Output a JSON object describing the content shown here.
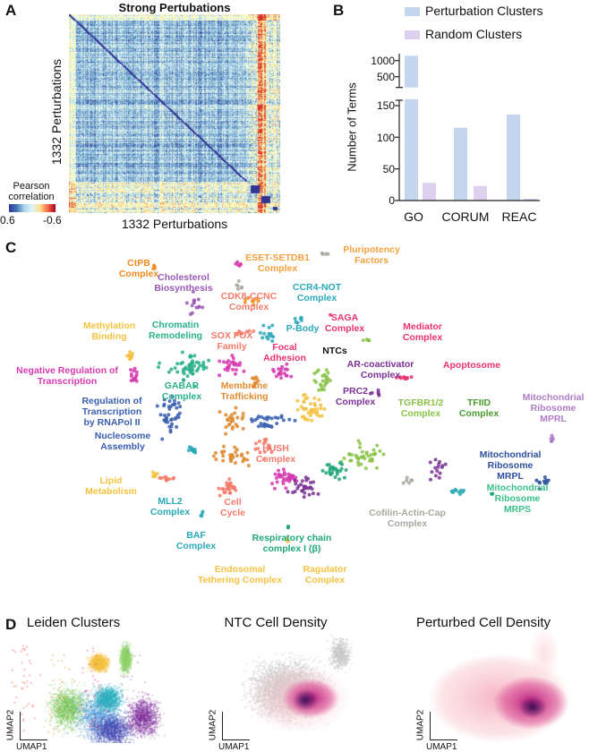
{
  "panel_labels": [
    "A",
    "B",
    "C",
    "D"
  ],
  "panel_a": {
    "title": "Strong Pertubations",
    "ylabel": "1332 Perturbations",
    "xlabel": "1332 Perturbations",
    "colorbar_title": "Pearson\ncorrelation",
    "colorbar_min_label": "0.6",
    "colorbar_max_label": "-0.6"
  },
  "panel_c": {
    "labels": [
      {
        "text": "CtPB\nComplex",
        "color": "#f28a1e"
      },
      {
        "text": "Cholesterol\nBiosynthesis",
        "color": "#9b59b6"
      },
      {
        "text": "ESET-SETDB1\nComplex",
        "color": "#f5a040"
      },
      {
        "text": "Pluripotency\nFactors",
        "color": "#f5a040"
      },
      {
        "text": "CCR4-NOT\nComplex",
        "color": "#2aa8b8"
      },
      {
        "text": "CDK8-CCNC\nComplex",
        "color": "#f47a6a"
      },
      {
        "text": "SAGA\nComplex",
        "color": "#e8336d"
      },
      {
        "text": "Mediator\nComplex",
        "color": "#e8336d"
      },
      {
        "text": "Methylation\nBinding",
        "color": "#f5c242"
      },
      {
        "text": "Chromatin\nRemodeling",
        "color": "#2ab08a"
      },
      {
        "text": "SOX FOX\nFamily",
        "color": "#f47a6a"
      },
      {
        "text": "P-Body",
        "color": "#2aa8b8"
      },
      {
        "text": "Focal\nAdhesion",
        "color": "#e8336d"
      },
      {
        "text": "NTCs",
        "color": "#111111"
      },
      {
        "text": "AR-coactivator\nComplex",
        "color": "#7b3294"
      },
      {
        "text": "Apoptosome",
        "color": "#e8336d"
      },
      {
        "text": "Negative Regulation of\nTranscription",
        "color": "#d63ab0"
      },
      {
        "text": "GABAR\nComplex",
        "color": "#2ab08a"
      },
      {
        "text": "Membrane\nTrafficking",
        "color": "#e08a30"
      },
      {
        "text": "PRC2\nComplex",
        "color": "#7b3294"
      },
      {
        "text": "TGFBR1/2\nComplex",
        "color": "#8bc34a"
      },
      {
        "text": "TFIID\nComplex",
        "color": "#4a9a30"
      },
      {
        "text": "Mitochondrial\nRibosome\nMPRL",
        "color": "#b07cc6"
      },
      {
        "text": "Regulation of\nTranscription\nby RNAPol II",
        "color": "#3a5fb0"
      },
      {
        "text": "Nucleosome\nAssembly",
        "color": "#3a5fb0"
      },
      {
        "text": "HUSH\nComplex",
        "color": "#f47a6a"
      },
      {
        "text": "Mitochondrial\nRibosome\nMRPL",
        "color": "#2e4f9e"
      },
      {
        "text": "Lipid\nMetabolism",
        "color": "#f5c242"
      },
      {
        "text": "Mitochondrial\nRibosome\nMRPS",
        "color": "#3cbf8a"
      },
      {
        "text": "MLL2\nComplex",
        "color": "#2aa8b8"
      },
      {
        "text": "Cell\nCycle",
        "color": "#f47a6a"
      },
      {
        "text": "Cofilin-Actin-Cap\nComplex",
        "color": "#a8a8a0"
      },
      {
        "text": "BAF\nComplex",
        "color": "#2aa8b8"
      },
      {
        "text": "Respiratory chain\ncomplex I (β)",
        "color": "#1fa67a"
      },
      {
        "text": "Endosomal\nTethering Complex",
        "color": "#f5c242"
      },
      {
        "text": "Ragulator\nComplex",
        "color": "#f5c242"
      }
    ]
  },
  "panel_d": {
    "titles": [
      "Leiden Clusters",
      "NTC Cell Density",
      "Perturbed Cell Density"
    ],
    "axis_x": "UMAP1",
    "axis_y": "UMAP2"
  },
  "chart_data": [
    {
      "type": "heatmap",
      "title": "Strong Pertubations",
      "xlabel": "1332 Perturbations",
      "ylabel": "1332 Perturbations",
      "colorbar": {
        "label": "Pearson correlation",
        "range": [
          0.6,
          -0.6
        ],
        "colors": [
          "#313695",
          "#e0f3f8",
          "#fee090",
          "#a50026"
        ]
      }
    },
    {
      "type": "bar",
      "title": "",
      "categories": [
        "GO",
        "CORUM",
        "REAC"
      ],
      "series": [
        {
          "name": "Perturbation Clusters",
          "color": "#c3d6ee",
          "values": [
            1150,
            115,
            136
          ]
        },
        {
          "name": "Random Clusters",
          "color": "#ddd0ee",
          "values": [
            28,
            23,
            3
          ]
        }
      ],
      "xlabel": "",
      "ylabel": "Number of Terms",
      "axis_break": true,
      "lower_ylim": [
        0,
        160
      ],
      "lower_ticks": [
        "0",
        "50",
        "100",
        "150"
      ],
      "upper_ticks": [
        "500",
        "1000"
      ],
      "legend_position": "top"
    }
  ]
}
